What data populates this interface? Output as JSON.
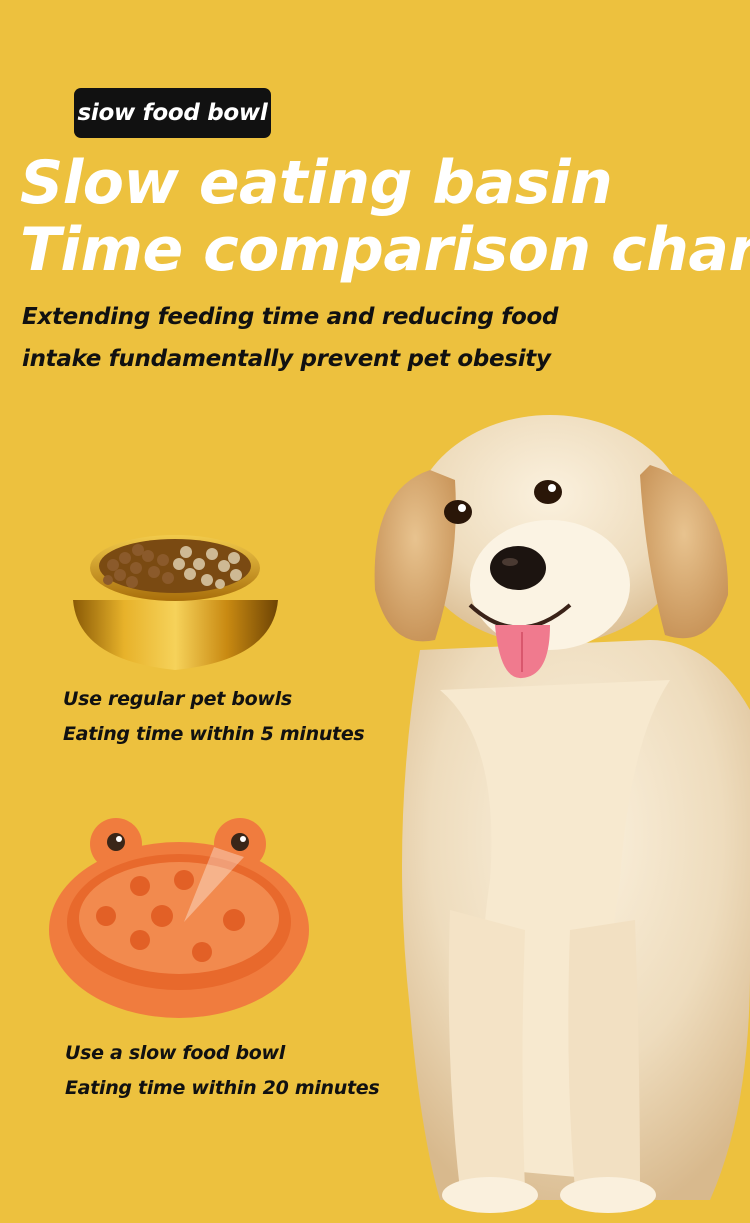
{
  "badge": "siow food bowl",
  "title_lines": [
    "Slow eating basin",
    "Time comparison chart"
  ],
  "subtitle_lines": [
    "Extending feeding time and reducing food",
    "intake fundamentally prevent pet obesity"
  ],
  "regular_bowl": {
    "line1": "Use regular pet bowls",
    "line2": "Eating time within 5 minutes"
  },
  "slow_bowl": {
    "line1": "Use a slow food bowl",
    "line2": "Eating time within 20 minutes"
  },
  "colors": {
    "background": "#EDC13E",
    "badge": "#111111",
    "title": "#FFFFFF",
    "slow_bowl": "#F0793A",
    "metal_bowl": "#D9A11E"
  }
}
